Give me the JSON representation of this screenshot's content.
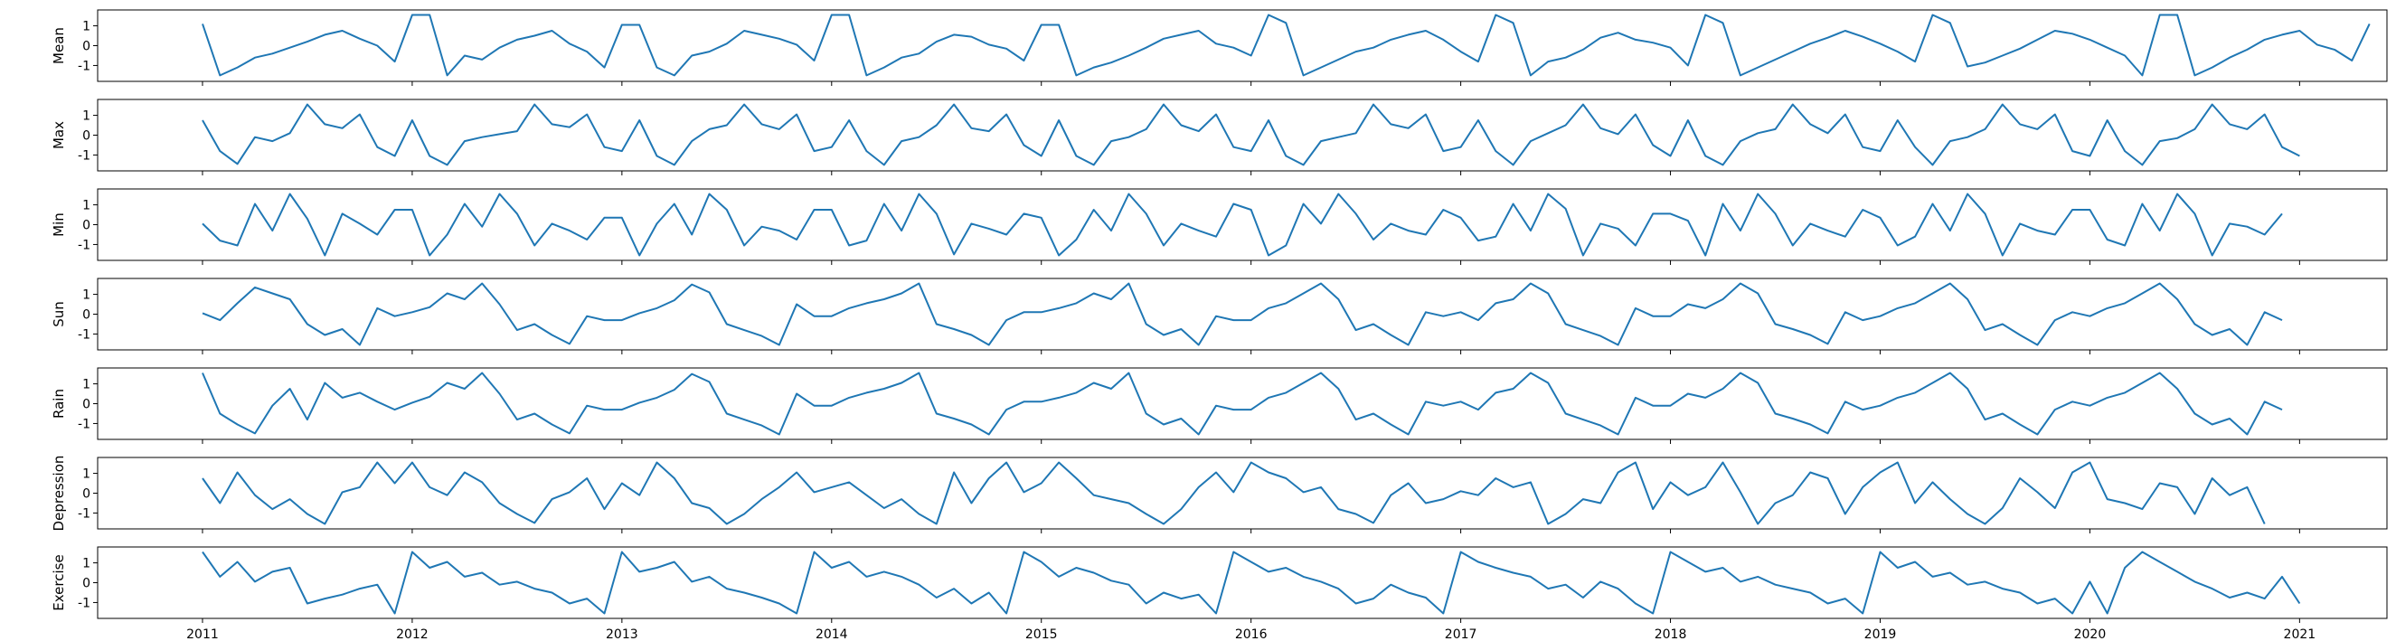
{
  "chart_data": {
    "type": "line",
    "layout": "stacked-subplots",
    "x_start": "2011-01",
    "x_frequency": "monthly",
    "x_ticks": [
      "2011",
      "2012",
      "2013",
      "2014",
      "2015",
      "2016",
      "2017",
      "2018",
      "2019",
      "2020",
      "2021"
    ],
    "xlim": [
      "2010-07",
      "2021-06"
    ],
    "line_color": "#1f77b4",
    "grid": false,
    "panels": [
      {
        "ylabel": "Mean",
        "y_ticks": [
          "-1",
          "0",
          "1"
        ],
        "ylim": [
          -1.8,
          1.8
        ],
        "values": [
          1.1,
          -1.5,
          -1.1,
          -0.6,
          -0.4,
          -0.1,
          0.2,
          0.55,
          0.75,
          0.35,
          0,
          -0.8,
          1.55,
          1.55,
          -1.5,
          -0.5,
          -0.7,
          -0.1,
          0.3,
          0.5,
          0.75,
          0.1,
          -0.3,
          -1.1,
          1.05,
          1.05,
          -1.1,
          -1.5,
          -0.5,
          -0.3,
          0.1,
          0.75,
          0.55,
          0.35,
          0.05,
          -0.75,
          1.55,
          1.55,
          -1.5,
          -1.1,
          -0.6,
          -0.4,
          0.2,
          0.55,
          0.45,
          0.05,
          -0.15,
          -0.75,
          1.05,
          1.05,
          -1.5,
          -1.1,
          -0.85,
          -0.5,
          -0.1,
          0.35,
          0.55,
          0.75,
          0.1,
          -0.1,
          -0.5,
          1.55,
          1.15,
          -1.5,
          -1.1,
          -0.7,
          -0.3,
          -0.1,
          0.3,
          0.55,
          0.75,
          0.3,
          -0.3,
          -0.8,
          1.55,
          1.15,
          -1.5,
          -0.8,
          -0.6,
          -0.2,
          0.4,
          0.65,
          0.3,
          0.15,
          -0.1,
          -1,
          1.55,
          1.15,
          -1.5,
          -1.1,
          -0.7,
          -0.3,
          0.1,
          0.4,
          0.75,
          0.45,
          0.1,
          -0.3,
          -0.8,
          1.55,
          1.15,
          -1.05,
          -0.85,
          -0.5,
          -0.15,
          0.3,
          0.75,
          0.6,
          0.3,
          -0.1,
          -0.5,
          -1.5,
          1.55,
          1.55,
          -1.5,
          -1.1,
          -0.6,
          -0.2,
          0.3,
          0.55,
          0.75,
          0.05,
          -0.2,
          -0.75,
          1.1
        ]
      },
      {
        "ylabel": "Max",
        "y_ticks": [
          "-1",
          "0",
          "1"
        ],
        "ylim": [
          -1.8,
          1.8
        ],
        "values": [
          0.75,
          -0.8,
          -1.45,
          -0.1,
          -0.3,
          0.1,
          1.55,
          0.55,
          0.35,
          1.05,
          -0.6,
          -1.05,
          0.75,
          -1.05,
          -1.5,
          -0.3,
          -0.1,
          0.05,
          0.2,
          1.55,
          0.55,
          0.4,
          1.05,
          -0.6,
          -0.8,
          0.75,
          -1.05,
          -1.5,
          -0.3,
          0.3,
          0.5,
          1.55,
          0.55,
          0.3,
          1.05,
          -0.8,
          -0.6,
          0.75,
          -0.8,
          -1.5,
          -0.3,
          -0.1,
          0.5,
          1.55,
          0.35,
          0.2,
          1.05,
          -0.5,
          -1.05,
          0.75,
          -1.05,
          -1.5,
          -0.3,
          -0.1,
          0.3,
          1.55,
          0.5,
          0.2,
          1.05,
          -0.6,
          -0.8,
          0.75,
          -1.05,
          -1.5,
          -0.3,
          -0.1,
          0.1,
          1.55,
          0.55,
          0.35,
          1.05,
          -0.8,
          -0.6,
          0.75,
          -0.8,
          -1.5,
          -0.3,
          0.1,
          0.5,
          1.55,
          0.35,
          0.05,
          1.05,
          -0.5,
          -1.05,
          0.75,
          -1.05,
          -1.5,
          -0.3,
          0.1,
          0.3,
          1.55,
          0.55,
          0.1,
          1.05,
          -0.6,
          -0.8,
          0.75,
          -0.6,
          -1.5,
          -0.3,
          -0.1,
          0.3,
          1.55,
          0.55,
          0.3,
          1.05,
          -0.8,
          -1.05,
          0.75,
          -0.8,
          -1.5,
          -0.3,
          -0.15,
          0.3,
          1.55,
          0.55,
          0.3,
          1.05,
          -0.6,
          -1.05
        ]
      },
      {
        "ylabel": "Min",
        "y_ticks": [
          "-1",
          "0",
          "1"
        ],
        "ylim": [
          -1.8,
          1.8
        ],
        "values": [
          0.05,
          -0.8,
          -1.05,
          1.05,
          -0.3,
          1.55,
          0.3,
          -1.55,
          0.55,
          0.05,
          -0.5,
          0.75,
          0.75,
          -1.55,
          -0.5,
          1.05,
          -0.1,
          1.55,
          0.55,
          -1.05,
          0.05,
          -0.3,
          -0.75,
          0.35,
          0.35,
          -1.55,
          0.05,
          1.05,
          -0.5,
          1.55,
          0.75,
          -1.05,
          -0.1,
          -0.3,
          -0.75,
          0.75,
          0.75,
          -1.05,
          -0.8,
          1.05,
          -0.3,
          1.55,
          0.55,
          -1.5,
          0.05,
          -0.2,
          -0.5,
          0.55,
          0.35,
          -1.55,
          -0.75,
          0.75,
          -0.3,
          1.55,
          0.55,
          -1.05,
          0.05,
          -0.3,
          -0.6,
          1.05,
          0.75,
          -1.55,
          -1.05,
          1.05,
          0.05,
          1.55,
          0.55,
          -0.75,
          0.05,
          -0.3,
          -0.5,
          0.75,
          0.35,
          -0.8,
          -0.6,
          1.05,
          -0.3,
          1.55,
          0.8,
          -1.55,
          0.05,
          -0.2,
          -1.05,
          0.55,
          0.55,
          0.2,
          -1.55,
          1.05,
          -0.3,
          1.55,
          0.55,
          -1.05,
          0.05,
          -0.3,
          -0.6,
          0.75,
          0.35,
          -1.05,
          -0.6,
          1.05,
          -0.3,
          1.55,
          0.55,
          -1.55,
          0.05,
          -0.3,
          -0.5,
          0.75,
          0.75,
          -0.75,
          -1.05,
          1.05,
          -0.3,
          1.55,
          0.55,
          -1.55,
          0.05,
          -0.1,
          -0.5,
          0.55
        ]
      },
      {
        "ylabel": "Sun",
        "y_ticks": [
          "-1",
          "0",
          "1"
        ],
        "ylim": [
          -1.8,
          1.8
        ],
        "values": [
          0.05,
          -0.3,
          0.55,
          1.35,
          1.05,
          0.75,
          -0.5,
          -1.05,
          -0.75,
          -1.55,
          0.3,
          -0.1,
          0.1,
          0.35,
          1.05,
          0.75,
          1.55,
          0.5,
          -0.8,
          -0.5,
          -1.05,
          -1.5,
          -0.1,
          -0.3,
          -0.3,
          0.05,
          0.3,
          0.7,
          1.5,
          1.1,
          -0.5,
          -0.8,
          -1.1,
          -1.55,
          0.5,
          -0.1,
          -0.1,
          0.3,
          0.55,
          0.75,
          1.05,
          1.55,
          -0.5,
          -0.75,
          -1.05,
          -1.55,
          -0.3,
          0.1,
          0.1,
          0.3,
          0.55,
          1.05,
          0.75,
          1.55,
          -0.5,
          -1.05,
          -0.75,
          -1.55,
          -0.1,
          -0.3,
          -0.3,
          0.3,
          0.55,
          1.05,
          1.55,
          0.75,
          -0.8,
          -0.5,
          -1.05,
          -1.55,
          0.1,
          -0.1,
          0.1,
          -0.3,
          0.55,
          0.75,
          1.55,
          1.05,
          -0.5,
          -0.8,
          -1.1,
          -1.55,
          0.3,
          -0.1,
          -0.1,
          0.5,
          0.3,
          0.75,
          1.55,
          1.05,
          -0.5,
          -0.75,
          -1.05,
          -1.5,
          0.1,
          -0.3,
          -0.1,
          0.3,
          0.55,
          1.05,
          1.55,
          0.75,
          -0.8,
          -0.5,
          -1.05,
          -1.55,
          -0.3,
          0.1,
          -0.1,
          0.3,
          0.55,
          1.05,
          1.55,
          0.75,
          -0.5,
          -1.05,
          -0.75,
          -1.55,
          0.1,
          -0.3
        ]
      },
      {
        "ylabel": "Rain",
        "y_ticks": [
          "-1",
          "0",
          "1"
        ],
        "ylim": [
          -1.8,
          1.8
        ],
        "values": [
          1.55,
          -0.5,
          -1.05,
          -1.5,
          -0.1,
          0.75,
          -0.8,
          1.05,
          0.3,
          0.55,
          0.1,
          -0.3,
          0.05,
          0.35,
          1.05,
          0.75,
          1.55,
          0.5,
          -0.8,
          -0.5,
          -1.05,
          -1.5,
          -0.1,
          -0.3,
          -0.3,
          0.05,
          0.3,
          0.7,
          1.5,
          1.1,
          -0.5,
          -0.8,
          -1.1,
          -1.55,
          0.5,
          -0.1,
          -0.1,
          0.3,
          0.55,
          0.75,
          1.05,
          1.55,
          -0.5,
          -0.75,
          -1.05,
          -1.55,
          -0.3,
          0.1,
          0.1,
          0.3,
          0.55,
          1.05,
          0.75,
          1.55,
          -0.5,
          -1.05,
          -0.75,
          -1.55,
          -0.1,
          -0.3,
          -0.3,
          0.3,
          0.55,
          1.05,
          1.55,
          0.75,
          -0.8,
          -0.5,
          -1.05,
          -1.55,
          0.1,
          -0.1,
          0.1,
          -0.3,
          0.55,
          0.75,
          1.55,
          1.05,
          -0.5,
          -0.8,
          -1.1,
          -1.55,
          0.3,
          -0.1,
          -0.1,
          0.5,
          0.3,
          0.75,
          1.55,
          1.05,
          -0.5,
          -0.75,
          -1.05,
          -1.5,
          0.1,
          -0.3,
          -0.1,
          0.3,
          0.55,
          1.05,
          1.55,
          0.75,
          -0.8,
          -0.5,
          -1.05,
          -1.55,
          -0.3,
          0.1,
          -0.1,
          0.3,
          0.55,
          1.05,
          1.55,
          0.75,
          -0.5,
          -1.05,
          -0.75,
          -1.55,
          0.1,
          -0.3
        ]
      },
      {
        "ylabel": "Depression",
        "y_ticks": [
          "-1",
          "0",
          "1"
        ],
        "ylim": [
          -1.8,
          1.8
        ],
        "values": [
          0.75,
          -0.5,
          1.05,
          -0.1,
          -0.8,
          -0.3,
          -1.05,
          -1.55,
          0.05,
          0.3,
          1.55,
          0.5,
          1.55,
          0.3,
          -0.1,
          1.05,
          0.55,
          -0.5,
          -1.05,
          -1.5,
          -0.3,
          0.05,
          0.75,
          -0.8,
          0.5,
          -0.1,
          1.55,
          0.75,
          -0.5,
          -0.75,
          -1.55,
          -1.05,
          -0.3,
          0.3,
          1.05,
          0.05,
          0.3,
          0.55,
          -0.1,
          -0.75,
          -0.3,
          -1.05,
          -1.55,
          1.05,
          -0.5,
          0.75,
          1.55,
          0.05,
          0.5,
          1.55,
          0.75,
          -0.1,
          -0.3,
          -0.5,
          -1.05,
          -1.55,
          -0.8,
          0.3,
          1.05,
          0.05,
          1.55,
          1.05,
          0.75,
          0.05,
          0.3,
          -0.8,
          -1.05,
          -1.5,
          -0.1,
          0.5,
          -0.5,
          -0.3,
          0.1,
          -0.1,
          0.75,
          0.3,
          0.55,
          -1.55,
          -1.05,
          -0.3,
          -0.5,
          1.05,
          1.55,
          -0.8,
          0.55,
          -0.1,
          0.3,
          1.55,
          0.05,
          -1.55,
          -0.5,
          -0.1,
          1.05,
          0.75,
          -1.05,
          0.3,
          1.05,
          1.55,
          -0.5,
          0.55,
          -0.3,
          -1.05,
          -1.55,
          -0.75,
          0.75,
          0.05,
          -0.75,
          1.05,
          1.55,
          -0.3,
          -0.5,
          -0.8,
          0.5,
          0.3,
          -1.05,
          0.75,
          -0.1,
          0.3,
          -1.55
        ]
      },
      {
        "ylabel": "Exercise",
        "y_ticks": [
          "-1",
          "0",
          "1"
        ],
        "ylim": [
          -1.8,
          1.8
        ],
        "values": [
          1.55,
          0.3,
          1.05,
          0.05,
          0.55,
          0.75,
          -1.05,
          -0.8,
          -0.6,
          -0.3,
          -0.1,
          -1.55,
          1.55,
          0.75,
          1.05,
          0.3,
          0.5,
          -0.1,
          0.05,
          -0.3,
          -0.5,
          -1.05,
          -0.8,
          -1.55,
          1.55,
          0.55,
          0.75,
          1.05,
          0.05,
          0.3,
          -0.3,
          -0.5,
          -0.75,
          -1.05,
          -1.55,
          1.55,
          0.75,
          1.05,
          0.3,
          0.55,
          0.3,
          -0.1,
          -0.75,
          -0.3,
          -1.05,
          -0.5,
          -1.55,
          1.55,
          1.05,
          0.3,
          0.75,
          0.5,
          0.1,
          -0.1,
          -1.05,
          -0.5,
          -0.8,
          -0.6,
          -1.55,
          1.55,
          1.05,
          0.55,
          0.75,
          0.3,
          0.05,
          -0.3,
          -1.05,
          -0.8,
          -0.1,
          -0.5,
          -0.75,
          -1.55,
          1.55,
          1.05,
          0.75,
          0.5,
          0.3,
          -0.3,
          -0.1,
          -0.75,
          0.05,
          -0.3,
          -1.05,
          -1.55,
          1.55,
          1.05,
          0.55,
          0.75,
          0.05,
          0.3,
          -0.1,
          -0.3,
          -0.5,
          -1.05,
          -0.8,
          -1.55,
          1.55,
          0.75,
          1.05,
          0.3,
          0.5,
          -0.1,
          0.05,
          -0.3,
          -0.5,
          -1.05,
          -0.8,
          -1.55,
          0.05,
          -1.55,
          0.75,
          1.55,
          1.05,
          0.55,
          0.05,
          -0.3,
          -0.75,
          -0.5,
          -0.8,
          0.3,
          -1.05
        ]
      }
    ]
  }
}
